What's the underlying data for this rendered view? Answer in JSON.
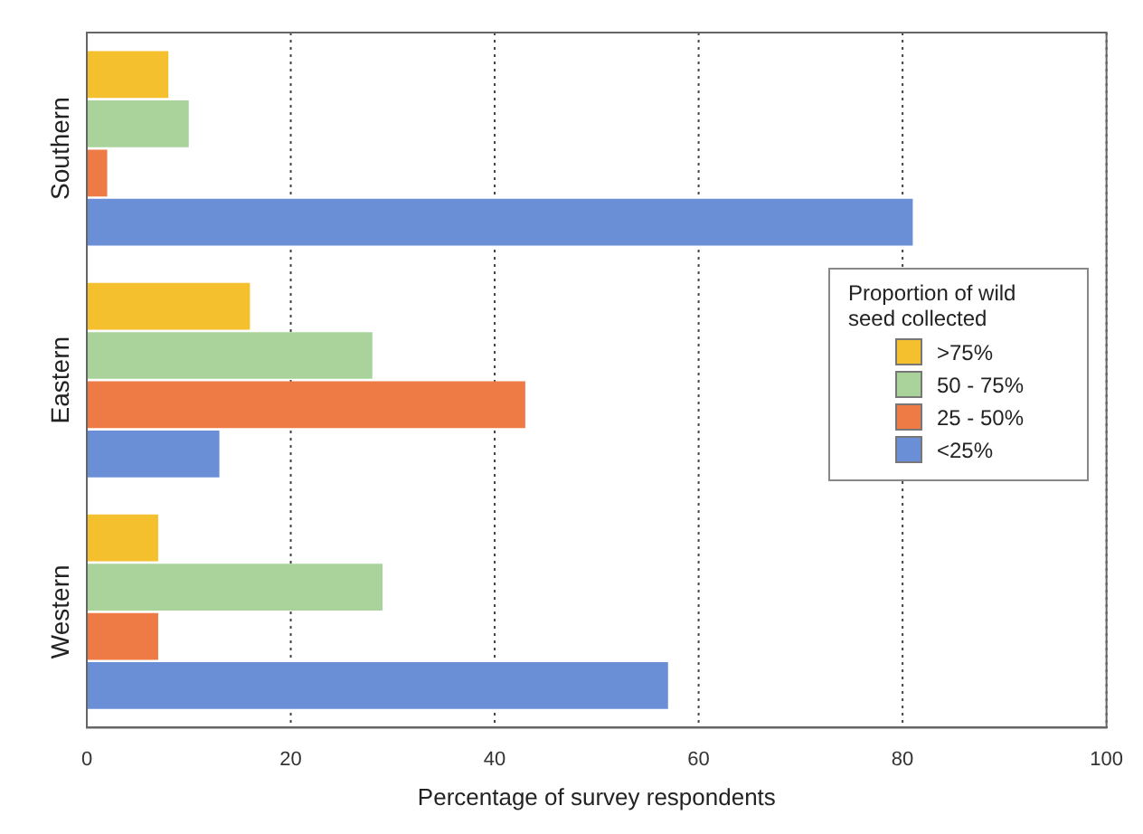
{
  "chart_data": {
    "type": "bar",
    "orientation": "horizontal",
    "xlabel": "Percentage of survey respondents",
    "legend_title": "Proportion of wild seed collected",
    "categories": [
      "Southern",
      "Eastern",
      "Western"
    ],
    "series": [
      {
        "name": ">75%",
        "color": "#f5c02e",
        "values": [
          8,
          16,
          7
        ]
      },
      {
        "name": "50 - 75%",
        "color": "#a9d39a",
        "values": [
          10,
          28,
          29
        ]
      },
      {
        "name": "25 - 50%",
        "color": "#ee7a45",
        "values": [
          2,
          43,
          7
        ]
      },
      {
        "name": "<25%",
        "color": "#6a8fd6",
        "values": [
          81,
          13,
          57
        ]
      }
    ],
    "xlim": [
      0,
      100
    ],
    "xticks": [
      0,
      20,
      40,
      60,
      80,
      100
    ],
    "grid": "x",
    "legend": "right"
  }
}
